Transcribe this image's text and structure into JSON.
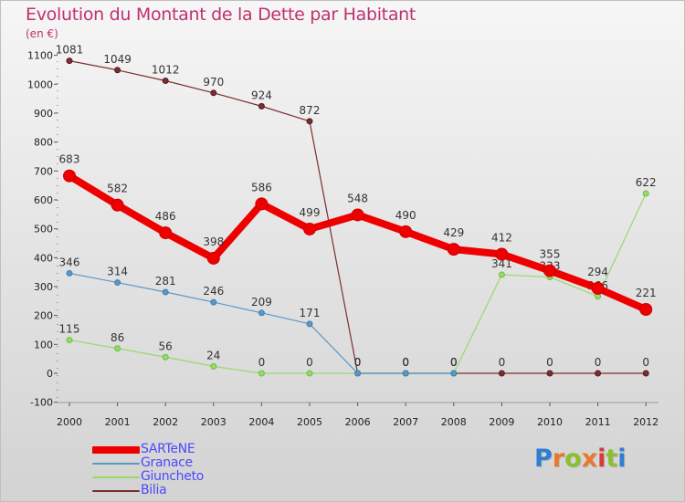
{
  "title": "Evolution du Montant de la Dette par Habitant",
  "unit": "(en €)",
  "logo": [
    "P",
    "r",
    "o",
    "x",
    "i",
    "t",
    "i"
  ],
  "chart_data": {
    "type": "line",
    "x": [
      "2000",
      "2001",
      "2002",
      "2003",
      "2004",
      "2005",
      "2006",
      "2007",
      "2008",
      "2009",
      "2010",
      "2011",
      "2012"
    ],
    "ylim": [
      -100,
      1100
    ],
    "yticks": [
      -100,
      0,
      100,
      200,
      300,
      400,
      500,
      600,
      700,
      800,
      900,
      1000,
      1100
    ],
    "grid": false,
    "legend_position": "bottom-left",
    "series": [
      {
        "name": "SARTeNE",
        "color": "#ee0000",
        "values": [
          683,
          582,
          486,
          398,
          586,
          499,
          548,
          490,
          429,
          412,
          355,
          294,
          221
        ]
      },
      {
        "name": "Granace",
        "color": "#5b97c9",
        "values": [
          346,
          314,
          281,
          246,
          209,
          171,
          0,
          0,
          0,
          null,
          null,
          null,
          null
        ]
      },
      {
        "name": "Giuncheto",
        "color": "#99d96a",
        "values": [
          115,
          86,
          56,
          24,
          0,
          0,
          0,
          0,
          0,
          341,
          333,
          266,
          622
        ]
      },
      {
        "name": "Bilia",
        "color": "#7a2f2f",
        "values": [
          1081,
          1049,
          1012,
          970,
          924,
          872,
          0,
          0,
          0,
          0,
          0,
          0,
          0
        ]
      }
    ]
  }
}
